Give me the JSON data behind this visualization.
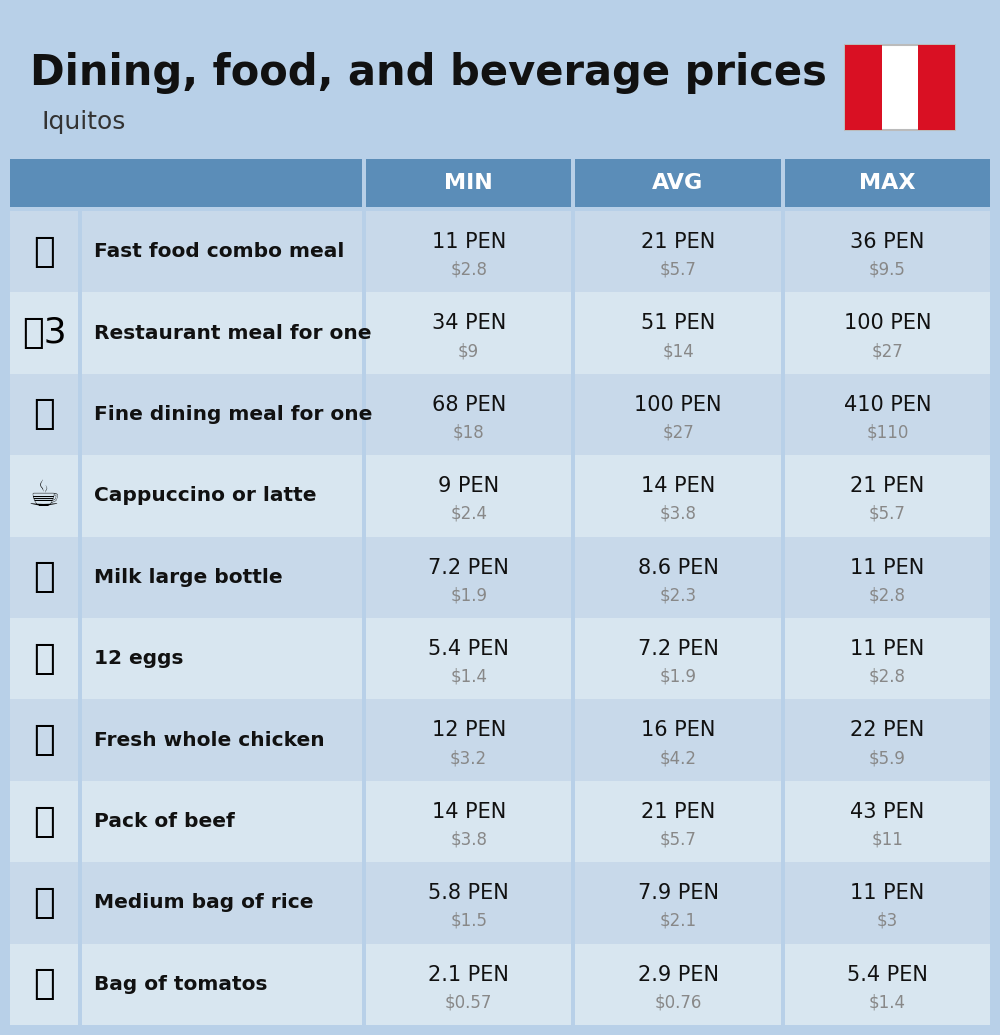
{
  "title": "Dining, food, and beverage prices",
  "subtitle": "Iquitos",
  "title_fontsize": 30,
  "subtitle_fontsize": 18,
  "bg_color": "#b8d0e8",
  "header_color": "#5b8db8",
  "header_text_color": "#ffffff",
  "row_color_odd": "#c8d9ea",
  "row_color_even": "#d8e6f0",
  "item_label_color": "#111111",
  "pen_value_color": "#111111",
  "usd_value_color": "#888888",
  "columns": [
    "MIN",
    "AVG",
    "MAX"
  ],
  "rows": [
    {
      "label": "Fast food combo meal",
      "min_pen": "11 PEN",
      "min_usd": "$2.8",
      "avg_pen": "21 PEN",
      "avg_usd": "$5.7",
      "max_pen": "36 PEN",
      "max_usd": "$9.5"
    },
    {
      "label": "Restaurant meal for one",
      "min_pen": "34 PEN",
      "min_usd": "$9",
      "avg_pen": "51 PEN",
      "avg_usd": "$14",
      "max_pen": "100 PEN",
      "max_usd": "$27"
    },
    {
      "label": "Fine dining meal for one",
      "min_pen": "68 PEN",
      "min_usd": "$18",
      "avg_pen": "100 PEN",
      "avg_usd": "$27",
      "max_pen": "410 PEN",
      "max_usd": "$110"
    },
    {
      "label": "Cappuccino or latte",
      "min_pen": "9 PEN",
      "min_usd": "$2.4",
      "avg_pen": "14 PEN",
      "avg_usd": "$3.8",
      "max_pen": "21 PEN",
      "max_usd": "$5.7"
    },
    {
      "label": "Milk large bottle",
      "min_pen": "7.2 PEN",
      "min_usd": "$1.9",
      "avg_pen": "8.6 PEN",
      "avg_usd": "$2.3",
      "max_pen": "11 PEN",
      "max_usd": "$2.8"
    },
    {
      "label": "12 eggs",
      "min_pen": "5.4 PEN",
      "min_usd": "$1.4",
      "avg_pen": "7.2 PEN",
      "avg_usd": "$1.9",
      "max_pen": "11 PEN",
      "max_usd": "$2.8"
    },
    {
      "label": "Fresh whole chicken",
      "min_pen": "12 PEN",
      "min_usd": "$3.2",
      "avg_pen": "16 PEN",
      "avg_usd": "$4.2",
      "max_pen": "22 PEN",
      "max_usd": "$5.9"
    },
    {
      "label": "Pack of beef",
      "min_pen": "14 PEN",
      "min_usd": "$3.8",
      "avg_pen": "21 PEN",
      "avg_usd": "$5.7",
      "max_pen": "43 PEN",
      "max_usd": "$11"
    },
    {
      "label": "Medium bag of rice",
      "min_pen": "5.8 PEN",
      "min_usd": "$1.5",
      "avg_pen": "7.9 PEN",
      "avg_usd": "$2.1",
      "max_pen": "11 PEN",
      "max_usd": "$3"
    },
    {
      "label": "Bag of tomatos",
      "min_pen": "2.1 PEN",
      "min_usd": "$0.57",
      "avg_pen": "2.9 PEN",
      "avg_usd": "$0.76",
      "max_pen": "5.4 PEN",
      "max_usd": "$1.4"
    }
  ],
  "icon_emojis": [
    "🍔",
    "🌷3",
    "🍽",
    "☕",
    "🥛",
    "🥚",
    "🍗",
    "🥩",
    "🍚",
    "🍅"
  ],
  "flag_colors": [
    "#D91023",
    "#FFFFFF",
    "#D91023"
  ]
}
